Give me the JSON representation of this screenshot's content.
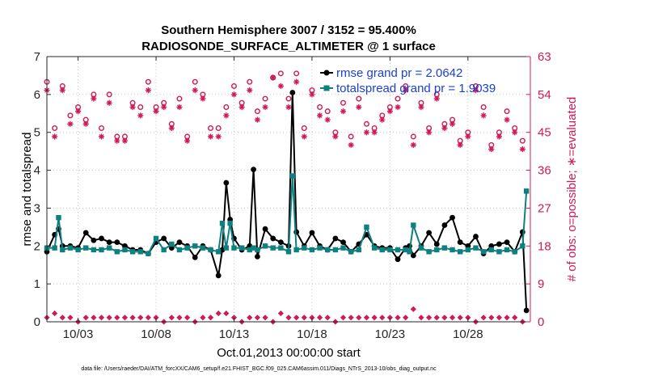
{
  "chart_data": {
    "type": "line",
    "title": "Southern Hemisphere 3007 / 3152 = 95.400%",
    "subtitle": "RADIOSONDE_SURFACE_ALTIMETER @ 1 surface",
    "xlabel": "Oct.01,2013 00:00:00 start",
    "ylabel": "rmse and totalspread",
    "y2label": "# of obs: o=possible; ∗=evaluated",
    "footnote": "data file: /Users/raeder/DAI/ATM_forcXX/CAM6_setup/f.e21.FHIST_BGC.f09_025.CAM6assim.011/Diags_NTrS_2013-10/obs_diag_output.nc",
    "x_tick_labels": [
      "10/03",
      "10/08",
      "10/13",
      "10/18",
      "10/23",
      "10/28"
    ],
    "x_ticks": [
      3,
      8,
      13,
      18,
      23,
      28
    ],
    "xlim": [
      1,
      32
    ],
    "ylim": [
      0,
      7
    ],
    "y_ticks": [
      0,
      1,
      2,
      3,
      4,
      5,
      6,
      7
    ],
    "y2lim": [
      0,
      63
    ],
    "y2_ticks": [
      0,
      9,
      18,
      27,
      36,
      45,
      54,
      63
    ],
    "colors": {
      "rmse": "#000000",
      "spread": "#0e8080",
      "obs": "#d11955",
      "legend_text": "#1a3fd6"
    },
    "series": [
      {
        "name": "rmse grand pr = 2.0642",
        "x": [
          1.0,
          1.5,
          1.75,
          2.0,
          2.5,
          3.0,
          3.5,
          4.0,
          4.5,
          5.0,
          5.5,
          6.0,
          6.5,
          7.0,
          7.5,
          8.0,
          8.5,
          9.0,
          9.5,
          10.0,
          10.5,
          11.0,
          11.5,
          12.0,
          12.25,
          12.5,
          12.75,
          13.0,
          13.5,
          14.0,
          14.25,
          14.5,
          15.0,
          15.5,
          16.0,
          16.5,
          16.75,
          17.0,
          17.5,
          18.0,
          18.5,
          19.0,
          19.5,
          20.0,
          20.5,
          21.0,
          21.5,
          22.0,
          22.5,
          23.0,
          23.5,
          24.0,
          24.25,
          24.5,
          25.0,
          25.5,
          26.0,
          26.5,
          27.0,
          27.5,
          28.0,
          28.5,
          29.0,
          29.5,
          30.0,
          30.5,
          31.0,
          31.5,
          31.75
        ],
        "values": [
          1.85,
          2.3,
          2.45,
          2.0,
          2.0,
          1.95,
          2.35,
          2.15,
          2.2,
          2.1,
          2.1,
          2.0,
          1.9,
          1.9,
          1.8,
          2.1,
          2.2,
          1.95,
          2.1,
          2.0,
          1.7,
          2.0,
          1.9,
          1.22,
          1.9,
          3.67,
          2.7,
          2.2,
          1.9,
          2.0,
          4.02,
          1.72,
          2.45,
          2.2,
          2.1,
          2.0,
          6.05,
          2.37,
          2.0,
          2.35,
          2.0,
          1.9,
          2.2,
          2.1,
          1.85,
          2.05,
          2.3,
          2.0,
          1.95,
          1.95,
          1.65,
          1.95,
          2.0,
          1.75,
          2.0,
          2.35,
          2.05,
          2.55,
          2.75,
          2.1,
          2.0,
          2.25,
          1.8,
          2.0,
          2.05,
          2.1,
          1.85,
          2.37,
          0.3
        ]
      },
      {
        "name": "totalspread grand pr = 1.9039",
        "x": [
          1.0,
          1.5,
          1.75,
          2.0,
          2.5,
          3.0,
          3.5,
          4.0,
          4.5,
          5.0,
          5.5,
          6.0,
          6.5,
          7.0,
          7.5,
          8.0,
          8.5,
          9.0,
          9.5,
          10.0,
          10.5,
          11.0,
          11.5,
          12.0,
          12.25,
          12.5,
          12.75,
          13.0,
          13.5,
          14.0,
          14.25,
          14.5,
          15.0,
          15.5,
          16.0,
          16.5,
          16.75,
          17.0,
          17.5,
          18.0,
          18.5,
          19.0,
          19.5,
          20.0,
          20.5,
          21.0,
          21.5,
          22.0,
          22.5,
          23.0,
          23.5,
          24.0,
          24.25,
          24.5,
          25.0,
          25.5,
          26.0,
          26.5,
          27.0,
          27.5,
          28.0,
          28.5,
          29.0,
          29.5,
          30.0,
          30.5,
          31.0,
          31.5,
          31.75
        ],
        "values": [
          1.95,
          1.95,
          2.75,
          1.9,
          1.95,
          1.9,
          1.95,
          1.9,
          1.9,
          1.95,
          1.85,
          1.9,
          1.85,
          1.85,
          1.8,
          2.2,
          1.9,
          2.05,
          1.9,
          1.95,
          2.0,
          1.95,
          1.9,
          1.85,
          2.6,
          1.95,
          2.6,
          1.95,
          1.95,
          1.9,
          1.95,
          1.9,
          2.0,
          1.95,
          1.95,
          1.85,
          3.85,
          1.9,
          1.95,
          1.9,
          1.95,
          1.9,
          1.9,
          1.95,
          1.85,
          1.9,
          2.5,
          1.95,
          1.9,
          1.9,
          1.9,
          1.9,
          1.85,
          2.55,
          1.95,
          1.85,
          1.9,
          1.95,
          1.9,
          1.85,
          1.9,
          1.95,
          1.85,
          1.9,
          1.85,
          1.9,
          1.85,
          2.0,
          3.45
        ]
      }
    ],
    "obs_possible": {
      "x": [
        1.0,
        1.5,
        2.0,
        2.5,
        3.0,
        3.5,
        4.0,
        4.5,
        5.0,
        5.5,
        6.0,
        6.5,
        7.0,
        7.5,
        8.0,
        8.5,
        9.0,
        9.5,
        10.0,
        10.5,
        11.0,
        11.5,
        12.0,
        12.5,
        13.0,
        13.5,
        14.0,
        14.5,
        15.0,
        15.5,
        16.0,
        16.5,
        17.0,
        17.5,
        18.0,
        18.5,
        19.0,
        19.5,
        20.0,
        20.5,
        21.0,
        21.5,
        22.0,
        22.5,
        23.0,
        23.5,
        24.0,
        24.5,
        25.0,
        25.5,
        26.0,
        26.5,
        27.0,
        27.5,
        28.0,
        28.5,
        29.0,
        29.5,
        30.0,
        30.5,
        31.0,
        31.5
      ],
      "values": [
        57,
        46,
        56,
        49,
        51,
        48,
        54,
        46,
        54,
        44,
        44,
        52,
        51,
        57,
        51,
        52,
        47,
        53,
        44,
        57,
        54,
        46,
        46,
        51,
        56,
        52,
        57,
        50,
        53,
        58,
        59,
        53,
        59,
        46,
        55,
        51,
        50,
        45,
        52,
        44,
        53,
        47,
        46,
        49,
        51,
        53,
        56,
        44,
        52,
        46,
        54,
        47,
        48,
        43,
        45,
        56,
        51,
        42,
        45,
        50,
        46,
        43
      ]
    },
    "obs_evaluated": {
      "x": [
        1.0,
        1.5,
        2.0,
        2.5,
        3.0,
        3.5,
        4.0,
        4.5,
        5.0,
        5.5,
        6.0,
        6.5,
        7.0,
        7.5,
        8.0,
        8.5,
        9.0,
        9.5,
        10.0,
        10.5,
        11.0,
        11.5,
        12.0,
        12.5,
        13.0,
        13.5,
        14.0,
        14.5,
        15.0,
        15.5,
        16.0,
        16.5,
        17.0,
        17.5,
        18.0,
        18.5,
        19.0,
        19.5,
        20.0,
        20.5,
        21.0,
        21.5,
        22.0,
        22.5,
        23.0,
        23.5,
        24.0,
        24.5,
        25.0,
        25.5,
        26.0,
        26.5,
        27.0,
        27.5,
        28.0,
        28.5,
        29.0,
        29.5,
        30.0,
        30.5,
        31.0,
        31.5
      ],
      "values": [
        55,
        44,
        55,
        47,
        50,
        47,
        53,
        44,
        52,
        43,
        43,
        51,
        49,
        55,
        50,
        51,
        46,
        51,
        43,
        55,
        53,
        44,
        44,
        49,
        54,
        51,
        55,
        48,
        51,
        58,
        56,
        51,
        57,
        44,
        54,
        49,
        48,
        44,
        50,
        42,
        51,
        45,
        45,
        48,
        50,
        51,
        55,
        42,
        51,
        45,
        53,
        46,
        47,
        42,
        44,
        55,
        49,
        41,
        44,
        48,
        45,
        41
      ]
    },
    "obs_rejected": {
      "x": [
        1.0,
        1.5,
        2.0,
        2.5,
        3.0,
        3.5,
        4.0,
        4.5,
        5.0,
        5.5,
        6.0,
        6.5,
        7.0,
        7.5,
        8.0,
        8.5,
        9.0,
        9.5,
        10.0,
        10.5,
        11.0,
        11.5,
        12.0,
        12.5,
        13.0,
        13.5,
        14.0,
        14.5,
        15.0,
        15.5,
        16.0,
        16.5,
        17.0,
        17.5,
        18.0,
        18.5,
        19.0,
        19.5,
        20.0,
        20.5,
        21.0,
        21.5,
        22.0,
        22.5,
        23.0,
        23.5,
        24.0,
        24.5,
        25.0,
        25.5,
        26.0,
        26.5,
        27.0,
        27.5,
        28.0,
        28.5,
        29.0,
        29.5,
        30.0,
        30.5,
        31.0,
        31.5
      ],
      "values": [
        1,
        2,
        1,
        1,
        0,
        1,
        1,
        1,
        1,
        1,
        1,
        1,
        1,
        1,
        1,
        0,
        1,
        1,
        1,
        0,
        1,
        1,
        2,
        2,
        1,
        0,
        1,
        1,
        1,
        0,
        2,
        1,
        1,
        1,
        1,
        1,
        1,
        0,
        1,
        1,
        1,
        1,
        1,
        1,
        1,
        1,
        1,
        3,
        1,
        1,
        1,
        1,
        1,
        1,
        1,
        0,
        1,
        1,
        1,
        1,
        1,
        0
      ]
    }
  }
}
